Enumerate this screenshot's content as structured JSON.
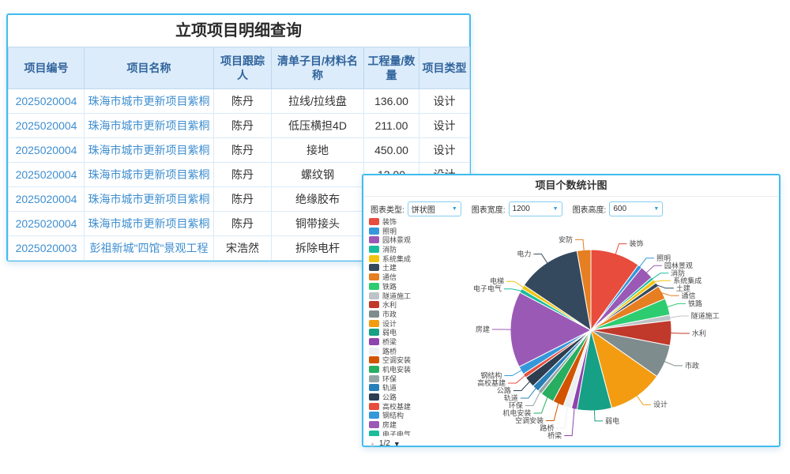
{
  "table_panel": {
    "title": "立项项目明细查询",
    "columns": [
      "项目编号",
      "项目名称",
      "项目跟踪人",
      "清单子目/材料名称",
      "工程量/数量",
      "项目类型"
    ],
    "rows": [
      [
        "2025020004",
        "珠海市城市更新项目紫桐",
        "陈丹",
        "拉线/拉线盘",
        "136.00",
        "设计"
      ],
      [
        "2025020004",
        "珠海市城市更新项目紫桐",
        "陈丹",
        "低压横担4D",
        "211.00",
        "设计"
      ],
      [
        "2025020004",
        "珠海市城市更新项目紫桐",
        "陈丹",
        "接地",
        "450.00",
        "设计"
      ],
      [
        "2025020004",
        "珠海市城市更新项目紫桐",
        "陈丹",
        "螺纹钢",
        "12.00",
        "设计"
      ],
      [
        "2025020004",
        "珠海市城市更新项目紫桐",
        "陈丹",
        "绝缘胶布",
        "",
        ""
      ],
      [
        "2025020004",
        "珠海市城市更新项目紫桐",
        "陈丹",
        "铜带接头",
        "",
        ""
      ],
      [
        "2025020003",
        "彭祖新城\"四馆\"景观工程",
        "宋浩然",
        "拆除电杆",
        "",
        ""
      ]
    ]
  },
  "chart_panel": {
    "title": "项目个数统计图",
    "controls": [
      {
        "label": "图表类型:",
        "value": "饼状图"
      },
      {
        "label": "图表宽度:",
        "value": "1200"
      },
      {
        "label": "图表高度:",
        "value": "600"
      }
    ],
    "legend_pager": "1/2"
  },
  "chart_data": {
    "type": "pie",
    "title": "项目个数统计图",
    "legend_position": "left",
    "legend_page": "1/2",
    "legend_visible_count": 24,
    "series": [
      {
        "name": "装饰",
        "color": "#e74c3c",
        "angle_deg_est": 36,
        "pct_est": 10.0
      },
      {
        "name": "照明",
        "color": "#3498db",
        "angle_deg_est": 3,
        "pct_est": 0.8
      },
      {
        "name": "园林景观",
        "color": "#9b59b6",
        "angle_deg_est": 10,
        "pct_est": 2.8
      },
      {
        "name": "消防",
        "color": "#1abc9c",
        "angle_deg_est": 2,
        "pct_est": 0.6
      },
      {
        "name": "系统集成",
        "color": "#f1c40f",
        "angle_deg_est": 3,
        "pct_est": 0.8
      },
      {
        "name": "土建",
        "color": "#34495e",
        "angle_deg_est": 3,
        "pct_est": 0.8
      },
      {
        "name": "通信",
        "color": "#e67e22",
        "angle_deg_est": 10,
        "pct_est": 2.8
      },
      {
        "name": "铁路",
        "color": "#2ecc71",
        "angle_deg_est": 12,
        "pct_est": 3.3
      },
      {
        "name": "隧道施工",
        "color": "#bdc3c7",
        "angle_deg_est": 4,
        "pct_est": 1.1
      },
      {
        "name": "水利",
        "color": "#c0392b",
        "angle_deg_est": 18,
        "pct_est": 5.0
      },
      {
        "name": "市政",
        "color": "#7f8c8d",
        "angle_deg_est": 24,
        "pct_est": 6.7
      },
      {
        "name": "设计",
        "color": "#f39c12",
        "angle_deg_est": 40,
        "pct_est": 11.1
      },
      {
        "name": "弱电",
        "color": "#16a085",
        "angle_deg_est": 25,
        "pct_est": 6.9
      },
      {
        "name": "桥梁",
        "color": "#8e44ad",
        "angle_deg_est": 4,
        "pct_est": 1.1
      },
      {
        "name": "路桥",
        "color": "#ecf0f1",
        "angle_deg_est": 6,
        "pct_est": 1.7
      },
      {
        "name": "空调安装",
        "color": "#d35400",
        "angle_deg_est": 8,
        "pct_est": 2.2
      },
      {
        "name": "机电安装",
        "color": "#27ae60",
        "angle_deg_est": 10,
        "pct_est": 2.8
      },
      {
        "name": "环保",
        "color": "#95a5a6",
        "angle_deg_est": 3,
        "pct_est": 0.8
      },
      {
        "name": "轨道",
        "color": "#2980b9",
        "angle_deg_est": 5,
        "pct_est": 1.4
      },
      {
        "name": "公路",
        "color": "#2c3e50",
        "angle_deg_est": 8,
        "pct_est": 2.2
      },
      {
        "name": "高校基建",
        "color": "#e74c3c",
        "angle_deg_est": 3,
        "pct_est": 0.8
      },
      {
        "name": "钢结构",
        "color": "#3498db",
        "angle_deg_est": 6,
        "pct_est": 1.7
      },
      {
        "name": "房建",
        "color": "#9b59b6",
        "angle_deg_est": 55,
        "pct_est": 15.3
      },
      {
        "name": "电子电气",
        "color": "#1abc9c",
        "angle_deg_est": 3,
        "pct_est": 0.8
      },
      {
        "name": "电梯",
        "color": "#f1c40f",
        "angle_deg_est": 3,
        "pct_est": 0.8
      },
      {
        "name": "电力",
        "color": "#34495e",
        "angle_deg_est": 46,
        "pct_est": 12.8
      },
      {
        "name": "安防",
        "color": "#e67e22",
        "angle_deg_est": 10,
        "pct_est": 2.8
      }
    ]
  }
}
